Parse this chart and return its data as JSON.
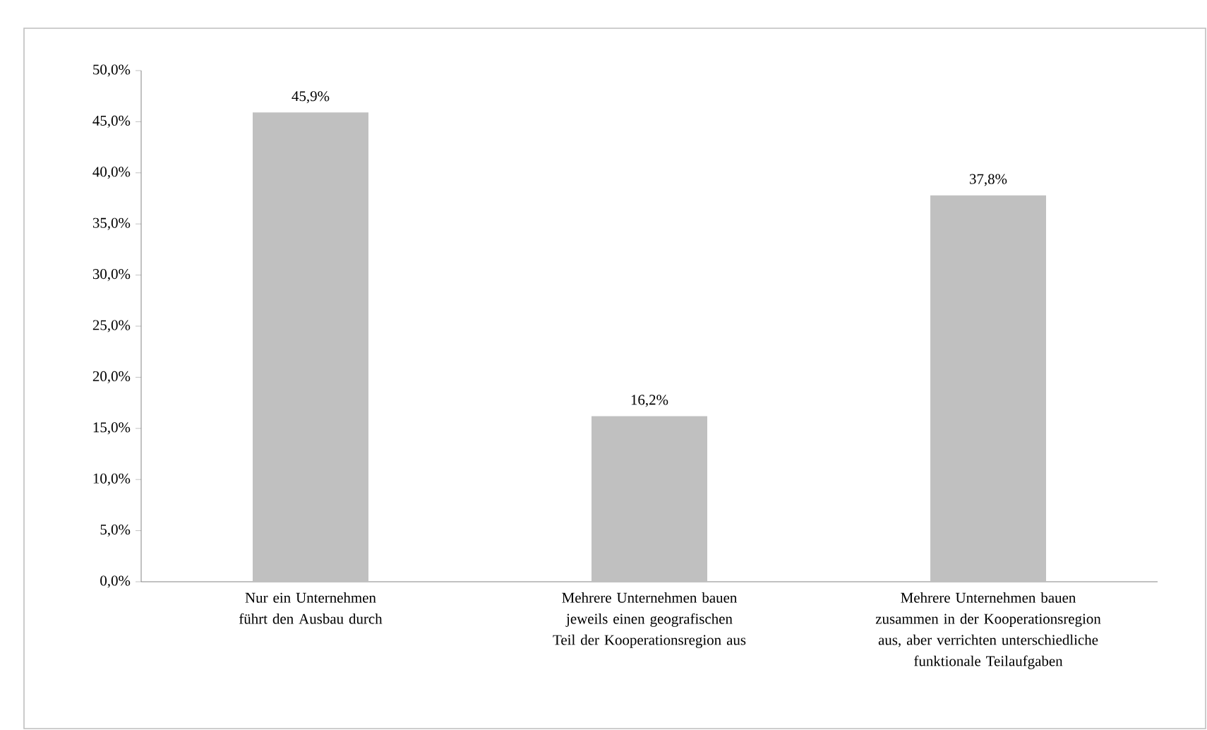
{
  "chart_data": {
    "type": "bar",
    "categories": [
      "Nur ein Unternehmen führt den Ausbau durch",
      "Mehrere Unternehmen bauen jeweils einen geografischen Teil der Kooperationsregion aus",
      "Mehrere Unternehmen bauen zusammen in der Kooperationsregion aus, aber verrichten unterschiedliche funktionale Teilaufgaben"
    ],
    "values": [
      45.9,
      16.2,
      37.8
    ],
    "value_labels": [
      "45,9%",
      "16,2%",
      "37,8%"
    ],
    "color": "#c0c0c0",
    "ylim": [
      0,
      50
    ],
    "yticks": [
      {
        "value": 0,
        "label": "0,0%"
      },
      {
        "value": 5,
        "label": "5,0%"
      },
      {
        "value": 10,
        "label": "10,0%"
      },
      {
        "value": 15,
        "label": "15,0%"
      },
      {
        "value": 20,
        "label": "20,0%"
      },
      {
        "value": 25,
        "label": "25,0%"
      },
      {
        "value": 30,
        "label": "30,0%"
      },
      {
        "value": 35,
        "label": "35,0%"
      },
      {
        "value": 40,
        "label": "40,0%"
      },
      {
        "value": 45,
        "label": "45,0%"
      },
      {
        "value": 50,
        "label": "50,0%"
      }
    ],
    "grid": false
  }
}
